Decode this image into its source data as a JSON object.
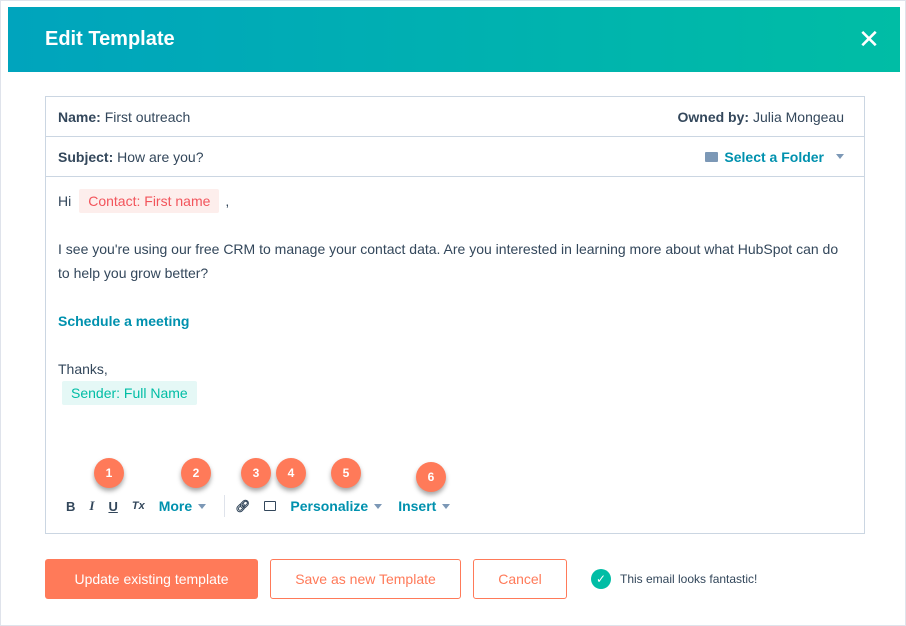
{
  "header": {
    "title": "Edit Template",
    "close_icon": "close-icon"
  },
  "meta": {
    "name_label": "Name:",
    "name_value": "First outreach",
    "owner_label": "Owned by:",
    "owner_value": "Julia Mongeau",
    "subject_label": "Subject:",
    "subject_value": "How are you?",
    "folder_label": "Select a Folder"
  },
  "body": {
    "greeting": "Hi",
    "contact_token": "Contact: First name",
    "comma": ",",
    "paragraph": "I see you're using our free CRM to manage your contact data. Are you interested in learning more about what HubSpot can do to help you grow better?",
    "link": "Schedule a meeting",
    "signoff": "Thanks,",
    "sender_token": "Sender: Full Name"
  },
  "toolbar": {
    "bold": "B",
    "italic": "I",
    "underline": "U",
    "clear": "Tx",
    "more": "More",
    "personalize": "Personalize",
    "insert": "Insert"
  },
  "badges": [
    "1",
    "2",
    "3",
    "4",
    "5",
    "6"
  ],
  "footer": {
    "update": "Update existing template",
    "save_new": "Save as new Template",
    "cancel": "Cancel",
    "status": "This email looks fantastic!"
  },
  "colors": {
    "accent": "#ff7a59",
    "link": "#0091ae",
    "header_start": "#00a4bd",
    "header_end": "#00bda5"
  }
}
